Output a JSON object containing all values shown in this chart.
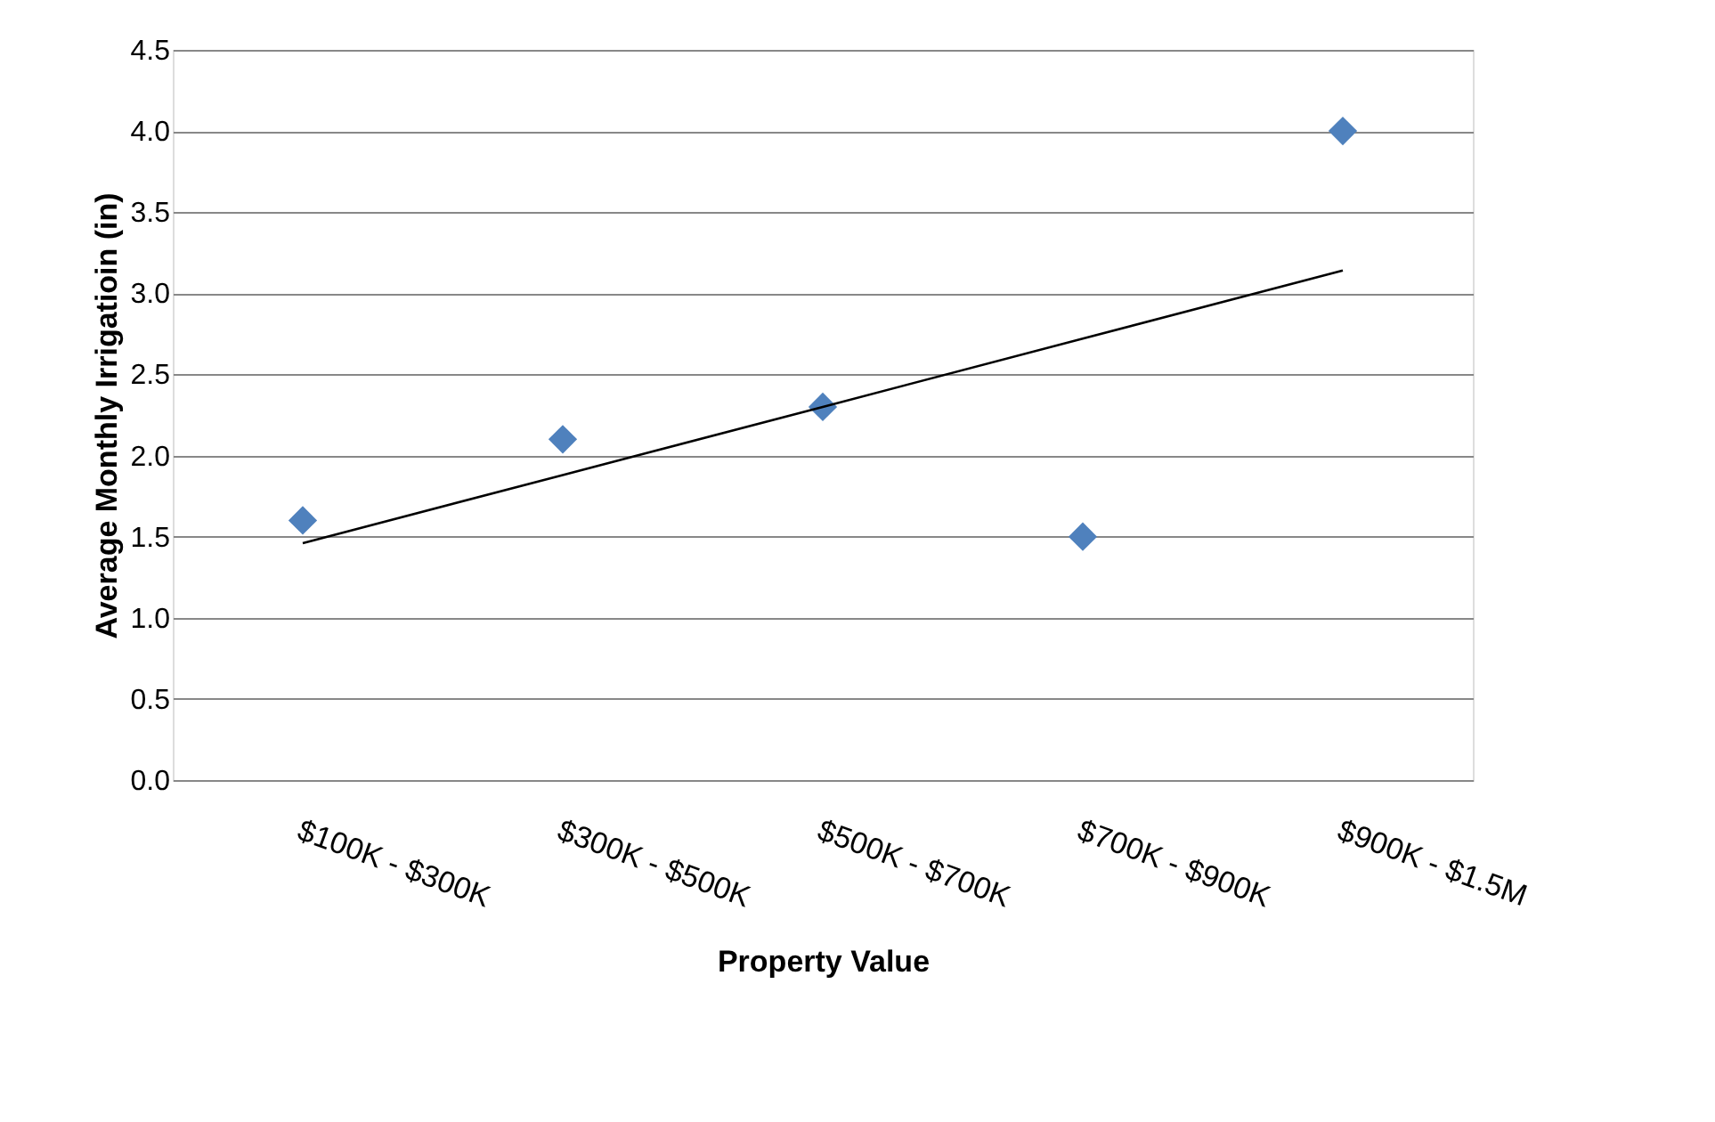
{
  "chart_data": {
    "type": "scatter",
    "xlabel": "Property Value",
    "ylabel": "Average Monthly Irrigatioin (in)",
    "categories": [
      "$100K - $300K",
      "$300K - $500K",
      "$500K - $700K",
      "$700K - $900K",
      "$900K - $1.5M"
    ],
    "series": [
      {
        "color": "#4f81bd",
        "marker": "diamond",
        "values": [
          1.6,
          2.1,
          2.3,
          1.5,
          4.0
        ]
      },
      {
        "type": "line",
        "color": "#000000",
        "marker": "none",
        "line_style": "solid",
        "values": [
          1.46,
          1.88,
          2.3,
          2.72,
          3.14
        ]
      }
    ],
    "ylim": [
      0,
      4.5
    ],
    "yticks": [
      {
        "value": 0,
        "label": "0.0"
      },
      0.5,
      {
        "value": 1,
        "label": "1.0"
      },
      1.5,
      {
        "value": 2,
        "label": "2.0"
      },
      2.5,
      {
        "value": 3,
        "label": "3.0"
      },
      3.5,
      {
        "value": 4,
        "label": "4.0"
      },
      4.5
    ],
    "grid": "y"
  }
}
